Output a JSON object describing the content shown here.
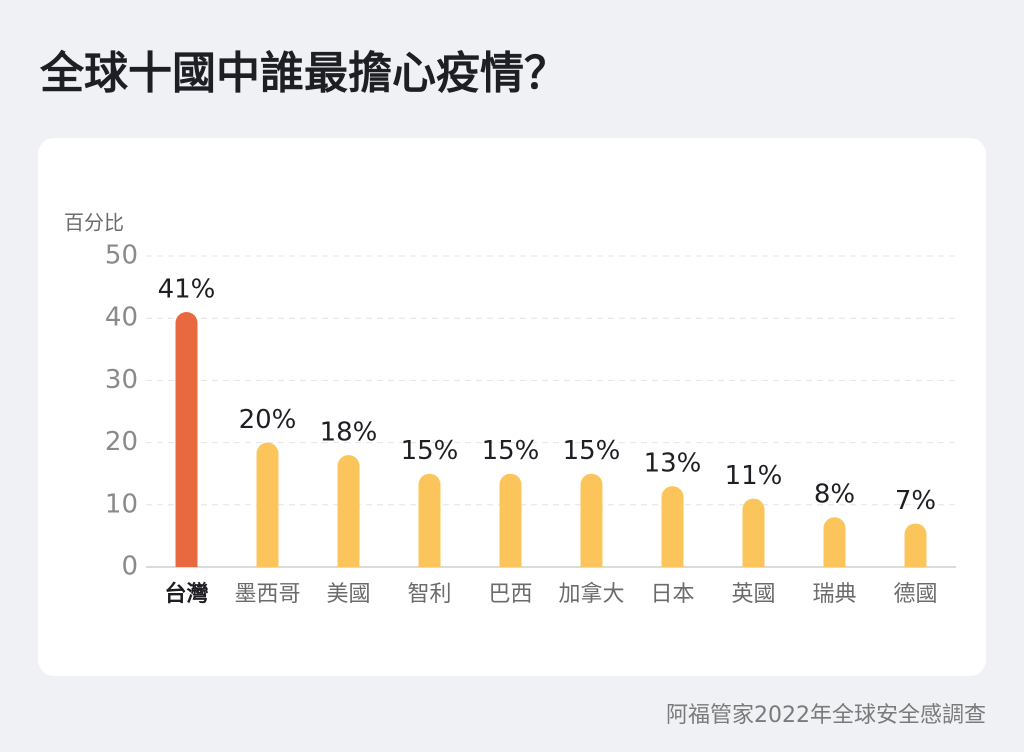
{
  "chart_data": {
    "type": "bar",
    "title": "全球十國中誰最擔心疫情？",
    "y_label": "百分比",
    "categories": [
      "台灣",
      "墨西哥",
      "美國",
      "智利",
      "巴西",
      "加拿大",
      "日本",
      "英國",
      "瑞典",
      "德國"
    ],
    "values": [
      41,
      20,
      18,
      15,
      15,
      15,
      13,
      11,
      8,
      7
    ],
    "value_labels": [
      "41%",
      "20%",
      "18%",
      "15%",
      "15%",
      "15%",
      "13%",
      "11%",
      "8%",
      "7%"
    ],
    "colors": [
      "#e8683f",
      "#fbc55c",
      "#fbc55c",
      "#fbc55c",
      "#fbc55c",
      "#fbc55c",
      "#fbc55c",
      "#fbc55c",
      "#fbc55c",
      "#fbc55c"
    ],
    "ylim": [
      0,
      50
    ],
    "yticks": [
      0,
      10,
      20,
      30,
      40,
      50
    ],
    "grid": true,
    "source": "阿福管家2022年全球安全感調查"
  }
}
